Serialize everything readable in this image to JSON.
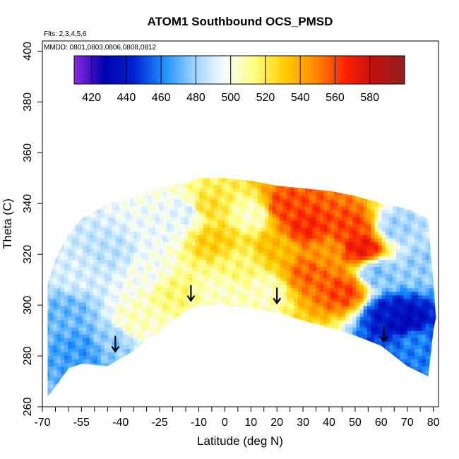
{
  "chart_data": {
    "type": "heatmap",
    "title": "ATOM1 Southbound OCS_PMSD",
    "xlabel": "Latitude (deg N)",
    "ylabel": "Theta (C)",
    "xlim": [
      -70,
      82
    ],
    "ylim": [
      260,
      404
    ],
    "x_ticks": [
      -70,
      -55,
      -40,
      -25,
      -10,
      0,
      10,
      20,
      30,
      40,
      50,
      60,
      70,
      80
    ],
    "y_ticks": [
      260,
      280,
      300,
      320,
      340,
      360,
      380,
      400
    ],
    "flights_note": "Flts: 2,3,4,5,6",
    "dates_note": "MMDD: 0801,0803,0806,0808,0812",
    "colorbar": {
      "range": [
        410,
        600
      ],
      "ticks": [
        420,
        440,
        460,
        480,
        500,
        520,
        540,
        560,
        580
      ],
      "stops": [
        "#8a2be2",
        "#0000b0",
        "#0022d0",
        "#1e90ff",
        "#9fd4ff",
        "#f6fcff",
        "#ffff80",
        "#ffcc00",
        "#ff8c00",
        "#ff2200",
        "#c01010",
        "#902020"
      ]
    },
    "upper_boundary": [
      [
        -68,
        308
      ],
      [
        -65,
        318
      ],
      [
        -60,
        328
      ],
      [
        -55,
        334
      ],
      [
        -45,
        340
      ],
      [
        -35,
        343
      ],
      [
        -25,
        346
      ],
      [
        -15,
        348
      ],
      [
        -10,
        350
      ],
      [
        0,
        350
      ],
      [
        10,
        349
      ],
      [
        20,
        347
      ],
      [
        30,
        346
      ],
      [
        40,
        345
      ],
      [
        50,
        343
      ],
      [
        60,
        340
      ],
      [
        70,
        338
      ],
      [
        78,
        334
      ],
      [
        79,
        320
      ],
      [
        80,
        310
      ],
      [
        81,
        295
      ],
      [
        80,
        290
      ],
      [
        79,
        280
      ],
      [
        78,
        272
      ]
    ],
    "lower_boundary": [
      [
        -68,
        264
      ],
      [
        -65,
        268
      ],
      [
        -60,
        275
      ],
      [
        -55,
        277
      ],
      [
        -45,
        276
      ],
      [
        -35,
        282
      ],
      [
        -25,
        290
      ],
      [
        -15,
        298
      ],
      [
        -10,
        300
      ],
      [
        0,
        300
      ],
      [
        10,
        299
      ],
      [
        20,
        297
      ],
      [
        30,
        294
      ],
      [
        40,
        291
      ],
      [
        50,
        288
      ],
      [
        60,
        284
      ],
      [
        70,
        276
      ],
      [
        78,
        272
      ]
    ],
    "regions": [
      {
        "lat": -62,
        "theta": 296,
        "value": 472
      },
      {
        "lat": -55,
        "theta": 282,
        "value": 465
      },
      {
        "lat": -45,
        "theta": 285,
        "value": 478
      },
      {
        "lat": -35,
        "theta": 293,
        "value": 505
      },
      {
        "lat": -58,
        "theta": 312,
        "value": 490
      },
      {
        "lat": -45,
        "theta": 320,
        "value": 485
      },
      {
        "lat": -30,
        "theta": 312,
        "value": 498
      },
      {
        "lat": -25,
        "theta": 330,
        "value": 495
      },
      {
        "lat": -15,
        "theta": 336,
        "value": 492
      },
      {
        "lat": -8,
        "theta": 338,
        "value": 525
      },
      {
        "lat": -5,
        "theta": 325,
        "value": 530
      },
      {
        "lat": -20,
        "theta": 305,
        "value": 515
      },
      {
        "lat": 5,
        "theta": 315,
        "value": 515
      },
      {
        "lat": 10,
        "theta": 335,
        "value": 505
      },
      {
        "lat": 20,
        "theta": 322,
        "value": 535
      },
      {
        "lat": 22,
        "theta": 338,
        "value": 560
      },
      {
        "lat": 30,
        "theta": 330,
        "value": 565
      },
      {
        "lat": 32,
        "theta": 312,
        "value": 555
      },
      {
        "lat": 38,
        "theta": 320,
        "value": 545
      },
      {
        "lat": 45,
        "theta": 305,
        "value": 560
      },
      {
        "lat": 48,
        "theta": 330,
        "value": 560
      },
      {
        "lat": 52,
        "theta": 322,
        "value": 570
      },
      {
        "lat": 58,
        "theta": 312,
        "value": 475
      },
      {
        "lat": 62,
        "theta": 296,
        "value": 440
      },
      {
        "lat": 68,
        "theta": 293,
        "value": 432
      },
      {
        "lat": 72,
        "theta": 285,
        "value": 460
      },
      {
        "lat": 65,
        "theta": 330,
        "value": 480
      },
      {
        "lat": 75,
        "theta": 315,
        "value": 478
      },
      {
        "lat": 14,
        "theta": 305,
        "value": 505
      },
      {
        "lat": -3,
        "theta": 305,
        "value": 505
      }
    ],
    "arrows": [
      {
        "lat": -42,
        "theta": 284
      },
      {
        "lat": -13,
        "theta": 304
      },
      {
        "lat": 20,
        "theta": 303
      },
      {
        "lat": 61,
        "theta": 288
      }
    ]
  }
}
